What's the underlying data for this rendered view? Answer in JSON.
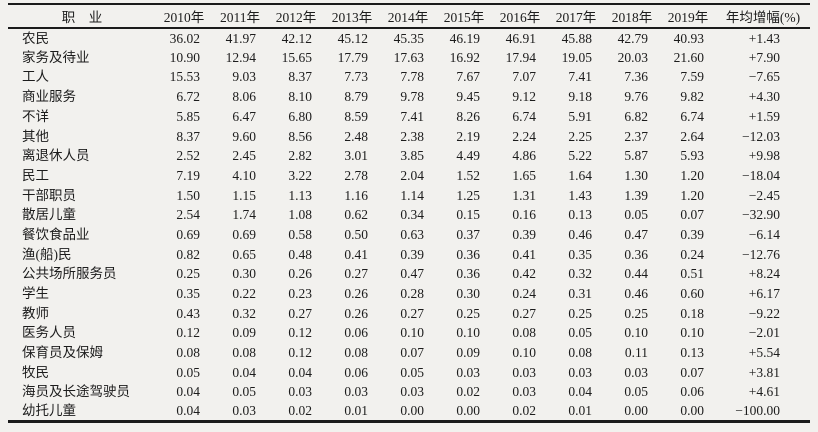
{
  "table": {
    "header": {
      "occupation": "职　业",
      "years": [
        "2010年",
        "2011年",
        "2012年",
        "2013年",
        "2014年",
        "2015年",
        "2016年",
        "2017年",
        "2018年",
        "2019年"
      ],
      "growth": "年均增幅(%)"
    },
    "rows": [
      {
        "label": "农民",
        "values": [
          "36.02",
          "41.97",
          "42.12",
          "45.12",
          "45.35",
          "46.19",
          "46.91",
          "45.88",
          "42.79",
          "40.93"
        ],
        "growth": "+1.43"
      },
      {
        "label": "家务及待业",
        "values": [
          "10.90",
          "12.94",
          "15.65",
          "17.79",
          "17.63",
          "16.92",
          "17.94",
          "19.05",
          "20.03",
          "21.60"
        ],
        "growth": "+7.90"
      },
      {
        "label": "工人",
        "values": [
          "15.53",
          "9.03",
          "8.37",
          "7.73",
          "7.78",
          "7.67",
          "7.07",
          "7.41",
          "7.36",
          "7.59"
        ],
        "growth": "−7.65"
      },
      {
        "label": "商业服务",
        "values": [
          "6.72",
          "8.06",
          "8.10",
          "8.79",
          "9.78",
          "9.45",
          "9.12",
          "9.18",
          "9.76",
          "9.82"
        ],
        "growth": "+4.30"
      },
      {
        "label": "不详",
        "values": [
          "5.85",
          "6.47",
          "6.80",
          "8.59",
          "7.41",
          "8.26",
          "6.74",
          "5.91",
          "6.82",
          "6.74"
        ],
        "growth": "+1.59"
      },
      {
        "label": "其他",
        "values": [
          "8.37",
          "9.60",
          "8.56",
          "2.48",
          "2.38",
          "2.19",
          "2.24",
          "2.25",
          "2.37",
          "2.64"
        ],
        "growth": "−12.03"
      },
      {
        "label": "离退休人员",
        "values": [
          "2.52",
          "2.45",
          "2.82",
          "3.01",
          "3.85",
          "4.49",
          "4.86",
          "5.22",
          "5.87",
          "5.93"
        ],
        "growth": "+9.98"
      },
      {
        "label": "民工",
        "values": [
          "7.19",
          "4.10",
          "3.22",
          "2.78",
          "2.04",
          "1.52",
          "1.65",
          "1.64",
          "1.30",
          "1.20"
        ],
        "growth": "−18.04"
      },
      {
        "label": "干部职员",
        "values": [
          "1.50",
          "1.15",
          "1.13",
          "1.16",
          "1.14",
          "1.25",
          "1.31",
          "1.43",
          "1.39",
          "1.20"
        ],
        "growth": "−2.45"
      },
      {
        "label": "散居儿童",
        "values": [
          "2.54",
          "1.74",
          "1.08",
          "0.62",
          "0.34",
          "0.15",
          "0.16",
          "0.13",
          "0.05",
          "0.07"
        ],
        "growth": "−32.90"
      },
      {
        "label": "餐饮食品业",
        "values": [
          "0.69",
          "0.69",
          "0.58",
          "0.50",
          "0.63",
          "0.37",
          "0.39",
          "0.46",
          "0.47",
          "0.39"
        ],
        "growth": "−6.14"
      },
      {
        "label": "渔(船)民",
        "values": [
          "0.82",
          "0.65",
          "0.48",
          "0.41",
          "0.39",
          "0.36",
          "0.41",
          "0.35",
          "0.36",
          "0.24"
        ],
        "growth": "−12.76"
      },
      {
        "label": "公共场所服务员",
        "values": [
          "0.25",
          "0.30",
          "0.26",
          "0.27",
          "0.47",
          "0.36",
          "0.42",
          "0.32",
          "0.44",
          "0.51"
        ],
        "growth": "+8.24"
      },
      {
        "label": "学生",
        "values": [
          "0.35",
          "0.22",
          "0.23",
          "0.26",
          "0.28",
          "0.30",
          "0.24",
          "0.31",
          "0.46",
          "0.60"
        ],
        "growth": "+6.17"
      },
      {
        "label": "教师",
        "values": [
          "0.43",
          "0.32",
          "0.27",
          "0.26",
          "0.27",
          "0.25",
          "0.27",
          "0.25",
          "0.25",
          "0.18"
        ],
        "growth": "−9.22"
      },
      {
        "label": "医务人员",
        "values": [
          "0.12",
          "0.09",
          "0.12",
          "0.06",
          "0.10",
          "0.10",
          "0.08",
          "0.05",
          "0.10",
          "0.10"
        ],
        "growth": "−2.01"
      },
      {
        "label": "保育员及保姆",
        "values": [
          "0.08",
          "0.08",
          "0.12",
          "0.08",
          "0.07",
          "0.09",
          "0.10",
          "0.08",
          "0.11",
          "0.13"
        ],
        "growth": "+5.54"
      },
      {
        "label": "牧民",
        "values": [
          "0.05",
          "0.04",
          "0.04",
          "0.06",
          "0.05",
          "0.03",
          "0.03",
          "0.03",
          "0.03",
          "0.07"
        ],
        "growth": "+3.81"
      },
      {
        "label": "海员及长途驾驶员",
        "values": [
          "0.04",
          "0.05",
          "0.03",
          "0.03",
          "0.03",
          "0.02",
          "0.03",
          "0.04",
          "0.05",
          "0.06"
        ],
        "growth": "+4.61"
      },
      {
        "label": "幼托儿童",
        "values": [
          "0.04",
          "0.03",
          "0.02",
          "0.01",
          "0.00",
          "0.00",
          "0.02",
          "0.01",
          "0.00",
          "0.00"
        ],
        "growth": "−100.00"
      }
    ]
  }
}
